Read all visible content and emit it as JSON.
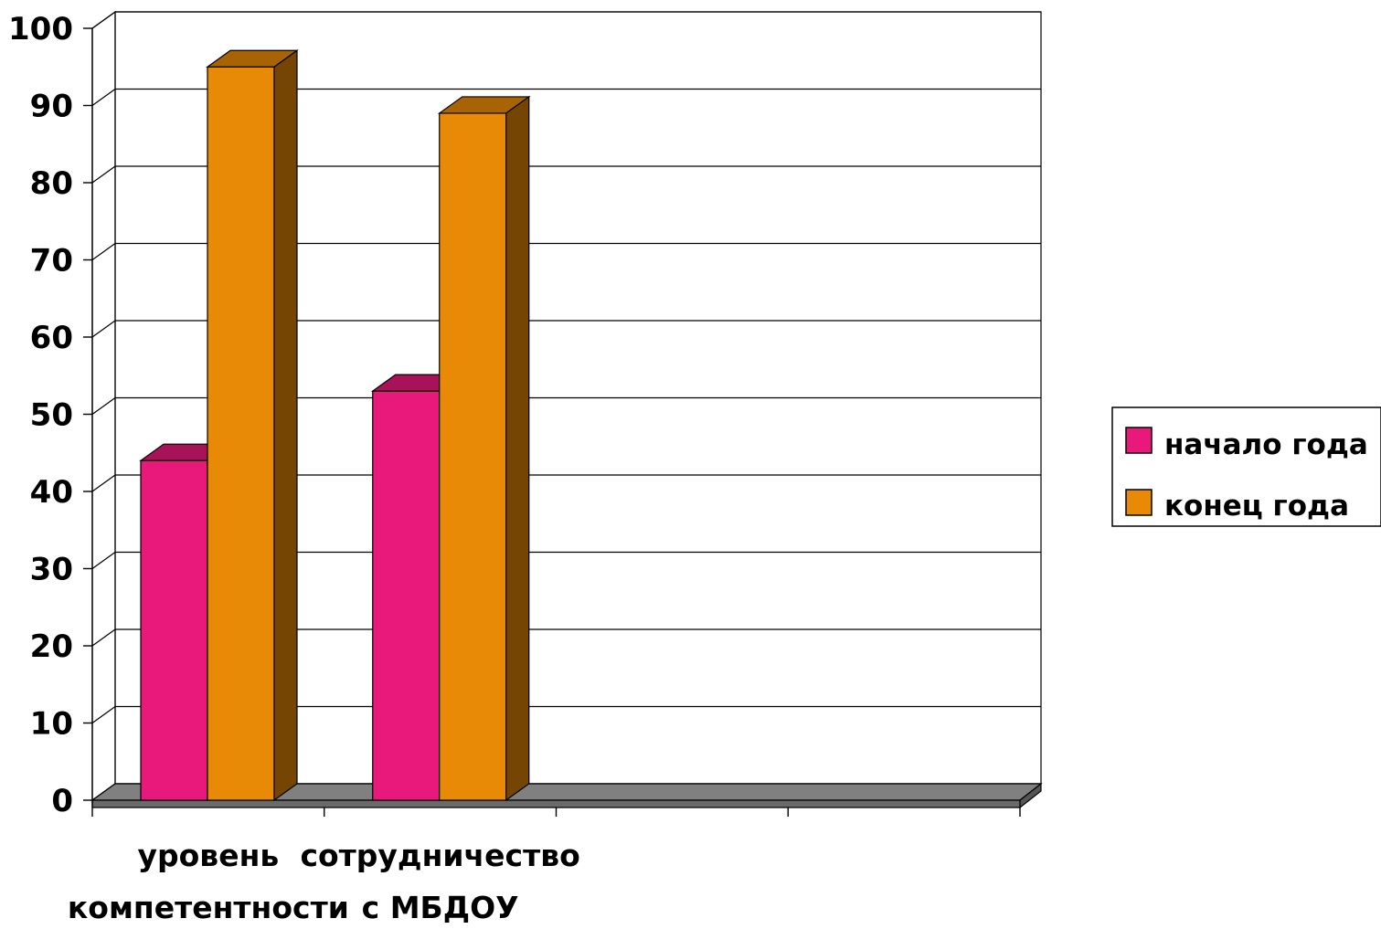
{
  "chart_data": {
    "type": "bar",
    "categories": [
      [
        "уровень",
        "компетентности"
      ],
      [
        "сотрудничество",
        "с МБДОУ"
      ],
      [
        "",
        ""
      ],
      [
        "",
        ""
      ]
    ],
    "series": [
      {
        "name": "начало года",
        "values": [
          44,
          53,
          null,
          null
        ],
        "color": "#e8197b"
      },
      {
        "name": "конец года",
        "values": [
          95,
          89,
          null,
          null
        ],
        "color": "#e88a05"
      }
    ],
    "ylim": [
      0,
      100
    ],
    "yticks": [
      0,
      10,
      20,
      30,
      40,
      50,
      60,
      70,
      80,
      90,
      100
    ],
    "grid": true,
    "legend_position": "right",
    "three_d": true
  }
}
